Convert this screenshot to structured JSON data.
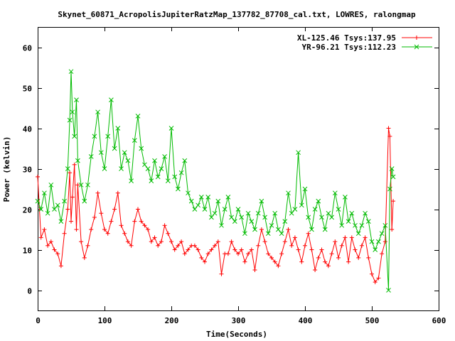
{
  "chart_data": {
    "type": "line",
    "title": "Skynet_60871_AcropolisJupiterRatzMap_137782_87708_cal.txt, LOWRES, ralongmap",
    "xlabel": "Time(Seconds)",
    "ylabel": "Power (kelvin)",
    "xlim": [
      0,
      600
    ],
    "ylim": [
      -5,
      65
    ],
    "xticks": [
      "0",
      "100",
      "200",
      "300",
      "400",
      "500",
      "600"
    ],
    "yticks": [
      "0",
      "10",
      "20",
      "30",
      "40",
      "50",
      "60"
    ],
    "grid": false,
    "legend_position": "top-right",
    "series": [
      {
        "name": "XL-125.46 Tsys:137.95",
        "color": "#ff0000",
        "marker": "plus",
        "x": [
          0,
          5,
          10,
          15,
          20,
          25,
          30,
          35,
          40,
          45,
          48,
          50,
          52,
          55,
          58,
          60,
          65,
          70,
          75,
          80,
          85,
          90,
          95,
          100,
          105,
          110,
          115,
          120,
          125,
          130,
          135,
          140,
          145,
          150,
          155,
          160,
          165,
          170,
          175,
          180,
          185,
          190,
          195,
          200,
          205,
          210,
          215,
          220,
          225,
          230,
          235,
          240,
          245,
          250,
          255,
          260,
          265,
          270,
          275,
          280,
          285,
          290,
          295,
          300,
          305,
          310,
          315,
          320,
          325,
          330,
          335,
          340,
          345,
          350,
          355,
          360,
          365,
          370,
          375,
          380,
          385,
          390,
          395,
          400,
          405,
          410,
          415,
          420,
          425,
          430,
          435,
          440,
          445,
          450,
          455,
          460,
          465,
          470,
          475,
          480,
          485,
          490,
          495,
          500,
          505,
          510,
          515,
          520,
          525,
          527,
          530,
          532
        ],
        "y": [
          28,
          13,
          15,
          11,
          12,
          10,
          9,
          6,
          14,
          20,
          29,
          17,
          23,
          31,
          15,
          26,
          12,
          8,
          11,
          15,
          18,
          24,
          19,
          15,
          14,
          17,
          20,
          24,
          16,
          14,
          12,
          11,
          17,
          20,
          17,
          16,
          15,
          12,
          13,
          11,
          12,
          16,
          14,
          12,
          10,
          11,
          12,
          9,
          10,
          11,
          11,
          10,
          8,
          7,
          9,
          10,
          11,
          12,
          4,
          9,
          9,
          12,
          10,
          9,
          10,
          7,
          9,
          10,
          5,
          11,
          15,
          12,
          9,
          8,
          7,
          6,
          9,
          12,
          15,
          11,
          13,
          10,
          7,
          11,
          14,
          10,
          5,
          8,
          10,
          7,
          6,
          9,
          12,
          8,
          11,
          13,
          7,
          13,
          10,
          8,
          11,
          13,
          8,
          4,
          2,
          3,
          9,
          12,
          40,
          38,
          15,
          22
        ]
      },
      {
        "name": "YR-96.21 Tsys:112.23",
        "color": "#00bb00",
        "marker": "cross",
        "x": [
          0,
          5,
          10,
          15,
          20,
          25,
          30,
          35,
          40,
          45,
          48,
          50,
          52,
          55,
          58,
          60,
          65,
          70,
          75,
          80,
          85,
          90,
          95,
          100,
          105,
          110,
          115,
          120,
          125,
          130,
          135,
          140,
          145,
          150,
          155,
          160,
          165,
          170,
          175,
          180,
          185,
          190,
          195,
          200,
          205,
          210,
          215,
          220,
          225,
          230,
          235,
          240,
          245,
          250,
          255,
          260,
          265,
          270,
          275,
          280,
          285,
          290,
          295,
          300,
          305,
          310,
          315,
          320,
          325,
          330,
          335,
          340,
          345,
          350,
          355,
          360,
          365,
          370,
          375,
          380,
          385,
          390,
          395,
          400,
          405,
          410,
          415,
          420,
          425,
          430,
          435,
          440,
          445,
          450,
          455,
          460,
          465,
          470,
          475,
          480,
          485,
          490,
          495,
          500,
          505,
          510,
          515,
          520,
          525,
          527,
          530,
          532
        ],
        "y": [
          22,
          20,
          24,
          19,
          26,
          20,
          21,
          17,
          22,
          30,
          42,
          54,
          44,
          38,
          47,
          32,
          26,
          22,
          26,
          33,
          38,
          44,
          34,
          30,
          38,
          47,
          35,
          40,
          30,
          34,
          32,
          27,
          37,
          43,
          35,
          31,
          30,
          27,
          32,
          28,
          30,
          33,
          27,
          40,
          28,
          25,
          29,
          32,
          24,
          22,
          20,
          21,
          23,
          20,
          23,
          18,
          19,
          22,
          16,
          20,
          23,
          18,
          17,
          20,
          18,
          14,
          19,
          17,
          15,
          19,
          22,
          18,
          14,
          16,
          19,
          15,
          14,
          17,
          24,
          19,
          20,
          34,
          21,
          25,
          18,
          15,
          20,
          22,
          18,
          15,
          19,
          18,
          24,
          20,
          16,
          23,
          17,
          19,
          16,
          14,
          16,
          19,
          17,
          12,
          10,
          12,
          14,
          16,
          0,
          25,
          30,
          28
        ]
      }
    ]
  }
}
